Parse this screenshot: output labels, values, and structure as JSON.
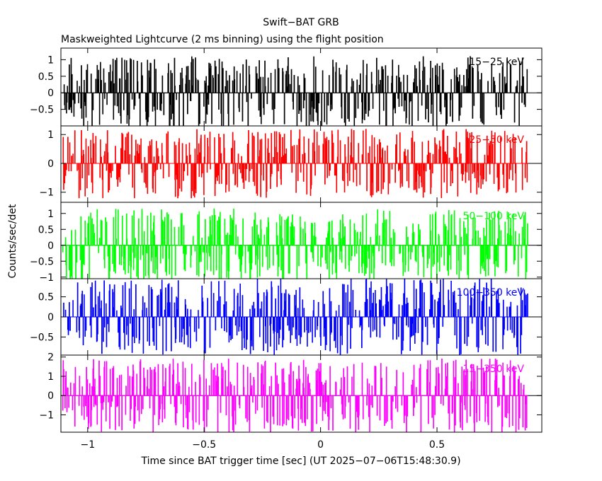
{
  "chart_data": [
    {
      "type": "line",
      "series_name": "15-25 keV",
      "label": "15−25 keV",
      "color": "#000000",
      "ylim": [
        -1.0,
        1.35
      ],
      "yticks": [
        -0.5,
        0,
        0.5,
        1
      ],
      "ytick_labels": [
        "−0.5",
        "0",
        "0.5",
        "1"
      ],
      "amplitude": 1.1,
      "seed": 11
    },
    {
      "type": "line",
      "series_name": "25-50 keV",
      "label": "25−50 keV",
      "color": "#ff0000",
      "ylim": [
        -1.35,
        1.3
      ],
      "yticks": [
        -1,
        0,
        1
      ],
      "ytick_labels": [
        "−1",
        "0",
        "1"
      ],
      "amplitude": 1.2,
      "seed": 23
    },
    {
      "type": "line",
      "series_name": "50-100 keV",
      "label": "50−100 keV",
      "color": "#00ff00",
      "ylim": [
        -1.05,
        1.35
      ],
      "yticks": [
        -1,
        -0.5,
        0,
        0.5,
        1
      ],
      "ytick_labels": [
        "−1",
        "−0.5",
        "0",
        "0.5",
        "1"
      ],
      "amplitude": 1.15,
      "seed": 37
    },
    {
      "type": "line",
      "series_name": "100-350 keV",
      "label": "100−350 keV",
      "color": "#0000ff",
      "ylim": [
        -0.95,
        0.95
      ],
      "yticks": [
        -0.5,
        0,
        0.5
      ],
      "ytick_labels": [
        "−0.5",
        "0",
        "0.5"
      ],
      "amplitude": 0.95,
      "seed": 53
    },
    {
      "type": "line",
      "series_name": "15-350 keV",
      "label": "15−350 keV",
      "color": "#ff00ff",
      "ylim": [
        -1.9,
        2.1
      ],
      "yticks": [
        -1,
        0,
        1,
        2
      ],
      "ytick_labels": [
        "−1",
        "0",
        "1",
        "2"
      ],
      "amplitude": 1.9,
      "seed": 71
    }
  ],
  "chart_meta": {
    "title": "Swift−BAT GRB",
    "subtitle": "Maskweighted Lightcurve (2 ms binning) using the flight position",
    "xlabel": "Time since BAT trigger time [sec] (UT 2025−07−06T15:48:30.9)",
    "ylabel": "Counts/sec/det",
    "xlim": [
      -1.115,
      0.95
    ],
    "data_xrange": [
      -1.11,
      0.89
    ],
    "bin_width": 0.002,
    "xticks": [
      -1,
      -0.5,
      0,
      0.5
    ],
    "xtick_labels": [
      "−1",
      "−0.5",
      "0",
      "0.5"
    ]
  }
}
